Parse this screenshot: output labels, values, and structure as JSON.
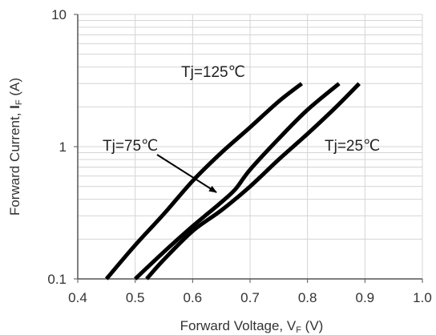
{
  "chart_data": {
    "type": "line",
    "x_axis": {
      "label_prefix": "Forward Voltage, V",
      "label_sub": "F",
      "label_suffix": " (V)",
      "range": [
        0.4,
        1.0
      ],
      "ticks": [
        "0.4",
        "0.5",
        "0.6",
        "0.7",
        "0.8",
        "0.9",
        "1.0"
      ],
      "tick_values": [
        0.4,
        0.5,
        0.6,
        0.7,
        0.8,
        0.9,
        1.0
      ]
    },
    "y_axis": {
      "label_prefix": "Forward Current, ",
      "label_bold": "I",
      "label_sub": "F",
      "label_suffix": " (A)",
      "scale": "log",
      "range": [
        0.1,
        10
      ],
      "ticks": [
        "0.1",
        "1",
        "10"
      ],
      "tick_values": [
        0.1,
        1,
        10
      ]
    },
    "grid": true,
    "series": [
      {
        "name": "Tj=125℃",
        "points": [
          [
            0.45,
            0.1
          ],
          [
            0.5,
            0.18
          ],
          [
            0.55,
            0.31
          ],
          [
            0.6,
            0.55
          ],
          [
            0.65,
            0.9
          ],
          [
            0.7,
            1.4
          ],
          [
            0.75,
            2.2
          ],
          [
            0.79,
            3.0
          ]
        ]
      },
      {
        "name": "Tj=75℃",
        "points": [
          [
            0.5,
            0.1
          ],
          [
            0.55,
            0.16
          ],
          [
            0.6,
            0.25
          ],
          [
            0.65,
            0.38
          ],
          [
            0.675,
            0.48
          ],
          [
            0.7,
            0.67
          ],
          [
            0.75,
            1.15
          ],
          [
            0.8,
            1.9
          ],
          [
            0.855,
            3.0
          ]
        ]
      },
      {
        "name": "Tj=25℃",
        "points": [
          [
            0.52,
            0.1
          ],
          [
            0.55,
            0.14
          ],
          [
            0.6,
            0.23
          ],
          [
            0.65,
            0.33
          ],
          [
            0.7,
            0.5
          ],
          [
            0.75,
            0.8
          ],
          [
            0.8,
            1.25
          ],
          [
            0.85,
            2.0
          ],
          [
            0.89,
            3.0
          ]
        ]
      }
    ],
    "annotations": [
      {
        "text": "Tj=125℃",
        "series": 0
      },
      {
        "text": "Tj=75℃",
        "series": 1,
        "arrow": true
      },
      {
        "text": "Tj=25℃",
        "series": 2
      }
    ],
    "colors": {
      "line": "#000000",
      "grid": "#d4d4d4",
      "axis": "#555555"
    }
  }
}
